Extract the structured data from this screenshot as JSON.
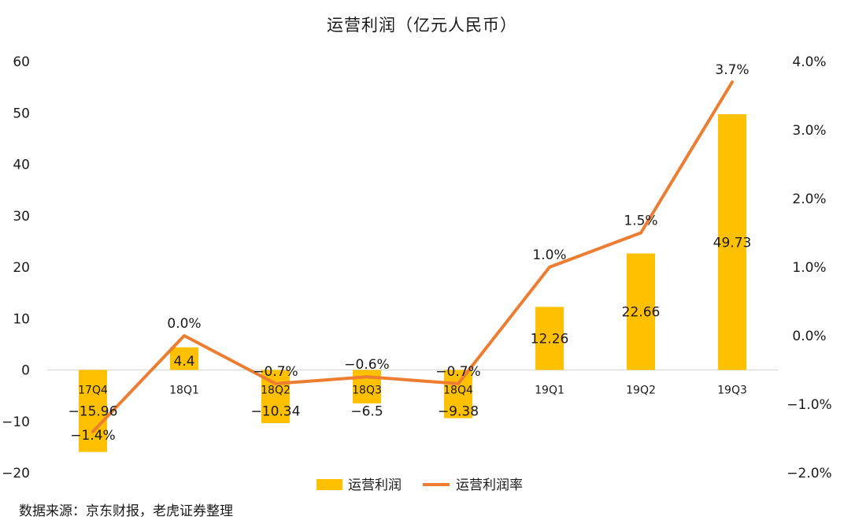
{
  "chart_data": {
    "type": "bar",
    "title": "运营利润（亿元人民币）",
    "categories": [
      "17Q4",
      "18Q1",
      "18Q2",
      "18Q3",
      "18Q4",
      "19Q1",
      "19Q2",
      "19Q3"
    ],
    "series": [
      {
        "name": "运营利润",
        "type": "bar",
        "axis": "left",
        "color": "#FFC000",
        "values": [
          -15.96,
          4.4,
          -10.34,
          -6.5,
          -9.38,
          12.26,
          22.66,
          49.73
        ],
        "labels": [
          "-15.96",
          "4.4",
          "-10.34",
          "-6.5",
          "-9.38",
          "12.26",
          "22.66",
          "49.73"
        ]
      },
      {
        "name": "运营利润率",
        "type": "line",
        "axis": "right",
        "color": "#ED7D31",
        "values": [
          -1.4,
          0.0,
          -0.7,
          -0.6,
          -0.7,
          1.0,
          1.5,
          3.7
        ],
        "labels": [
          "-1.4%",
          "0.0%",
          "-0.7%",
          "-0.6%",
          "-0.7%",
          "1.0%",
          "1.5%",
          "3.7%"
        ]
      }
    ],
    "y_left": {
      "ylim": [
        -20,
        60
      ],
      "ticks": [
        "60",
        "50",
        "40",
        "30",
        "20",
        "10",
        "0",
        "-10",
        "-20"
      ]
    },
    "y_right": {
      "ylim": [
        -2.0,
        4.0
      ],
      "ticks": [
        "4.0%",
        "3.0%",
        "2.0%",
        "1.0%",
        "0.0%",
        "-1.0%",
        "-2.0%"
      ]
    },
    "grid": false,
    "legend": {
      "placement": "bottom",
      "items": [
        "运营利润",
        "运营利润率"
      ]
    }
  },
  "footer": {
    "source": "数据来源：京东财报，老虎证券整理"
  }
}
